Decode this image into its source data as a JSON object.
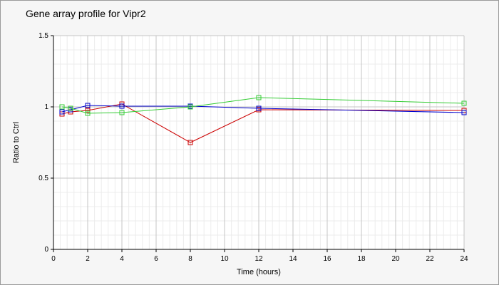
{
  "chart_data": {
    "type": "line",
    "title": "Gene array profile for Vipr2",
    "xlabel": "Time (hours)",
    "ylabel": "Ratio to Ctrl",
    "xlim": [
      0,
      24
    ],
    "ylim": [
      0,
      1.5
    ],
    "x_ticks": [
      0,
      2,
      4,
      6,
      8,
      10,
      12,
      14,
      16,
      18,
      20,
      22,
      24
    ],
    "y_ticks": [
      0,
      0.5,
      1,
      1.5
    ],
    "grid": true,
    "marker": "square",
    "series": [
      {
        "color": "#cc0000",
        "points": [
          [
            0.5,
            0.95
          ],
          [
            1,
            0.965
          ],
          [
            2,
            0.975
          ],
          [
            4,
            1.02
          ],
          [
            8,
            0.75
          ],
          [
            12,
            0.98
          ],
          [
            24,
            0.975
          ]
        ]
      },
      {
        "color": "#0000cc",
        "points": [
          [
            0.5,
            0.965
          ],
          [
            1,
            0.98
          ],
          [
            2,
            1.01
          ],
          [
            4,
            1.005
          ],
          [
            8,
            1.005
          ],
          [
            12,
            0.99
          ],
          [
            24,
            0.96
          ]
        ]
      },
      {
        "color": "#33cc33",
        "points": [
          [
            0.5,
            1.0
          ],
          [
            1,
            0.99
          ],
          [
            2,
            0.955
          ],
          [
            4,
            0.96
          ],
          [
            8,
            1.0
          ],
          [
            12,
            1.065
          ],
          [
            24,
            1.025
          ]
        ]
      }
    ]
  }
}
